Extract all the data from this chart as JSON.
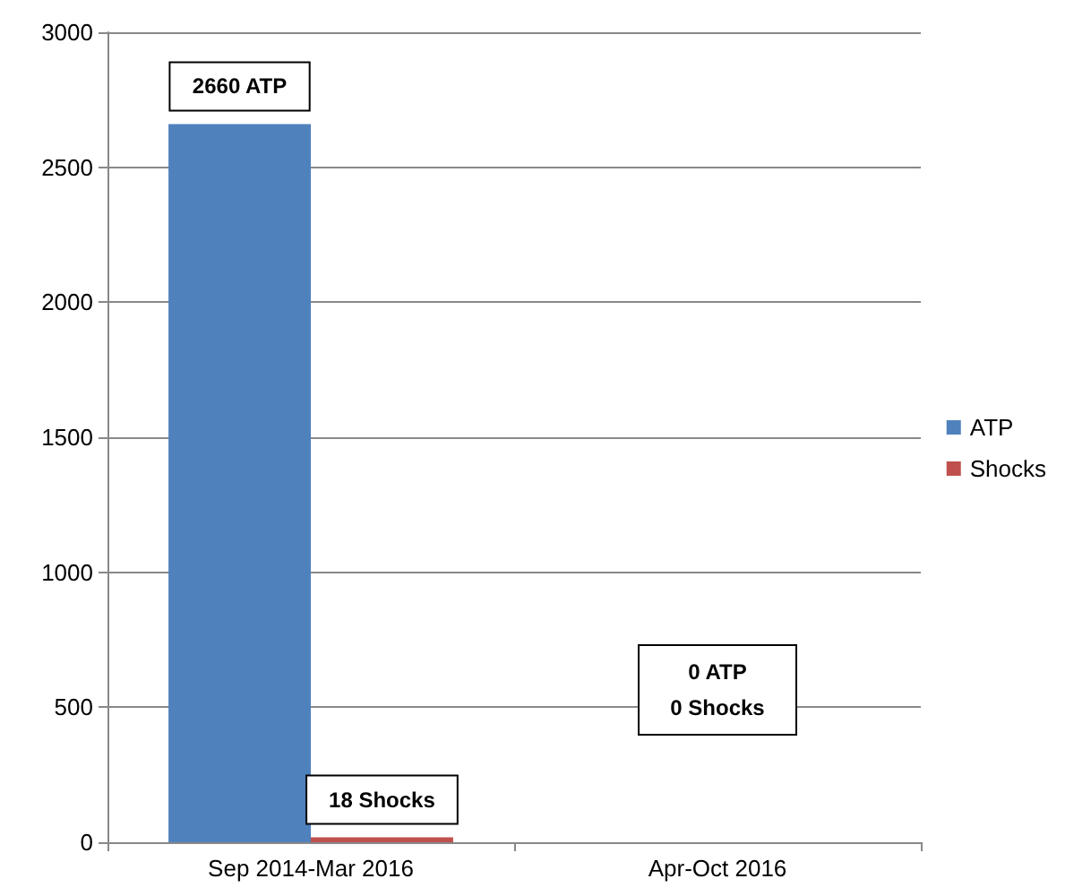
{
  "chart_data": {
    "type": "bar",
    "categories": [
      "Sep 2014-Mar 2016",
      "Apr-Oct 2016"
    ],
    "series": [
      {
        "name": "ATP",
        "color": "#4f81bd",
        "values": [
          2660,
          0
        ],
        "value_labels": [
          "2660 ATP",
          null
        ]
      },
      {
        "name": "Shocks",
        "color": "#c0504d",
        "values": [
          18,
          0
        ],
        "value_labels": [
          "18 Shocks",
          null
        ]
      }
    ],
    "annotations": [
      "0 ATP",
      "0 Shocks"
    ],
    "ylim": [
      0,
      3000
    ],
    "yticks": [
      0,
      500,
      1000,
      1500,
      2000,
      2500,
      3000
    ],
    "grid": "y",
    "legend": "right"
  }
}
